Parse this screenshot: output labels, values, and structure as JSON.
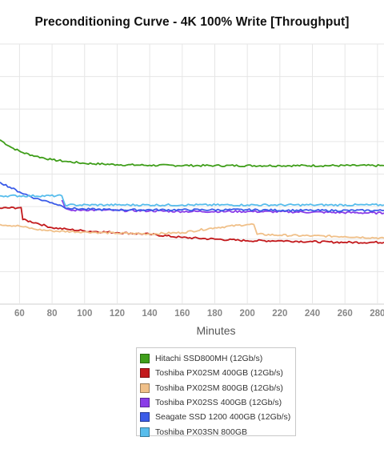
{
  "chart_data": {
    "type": "line",
    "title": "Preconditioning Curve - 4K 100% Write [Throughput]",
    "xlabel": "Minutes",
    "ylabel": "",
    "x_ticks": [
      60,
      80,
      100,
      120,
      140,
      160,
      180,
      200,
      220,
      240,
      260,
      280
    ],
    "xlim": [
      48,
      284
    ],
    "ylim": [
      0,
      8
    ],
    "grid": true,
    "legend_position": "bottom",
    "series": [
      {
        "name": "Hitachi SSD800MH (12Gb/s)",
        "color": "#3f9e1a",
        "points": [
          [
            48,
            5.05
          ],
          [
            55,
            4.82
          ],
          [
            62,
            4.66
          ],
          [
            70,
            4.55
          ],
          [
            80,
            4.44
          ],
          [
            90,
            4.38
          ],
          [
            100,
            4.33
          ],
          [
            120,
            4.29
          ],
          [
            140,
            4.27
          ],
          [
            180,
            4.26
          ],
          [
            220,
            4.26
          ],
          [
            284,
            4.26
          ]
        ]
      },
      {
        "name": "Toshiba PX02SM 400GB (12Gb/s)",
        "color": "#c3191c",
        "points": [
          [
            48,
            2.95
          ],
          [
            61,
            2.97
          ],
          [
            62,
            2.6
          ],
          [
            70,
            2.5
          ],
          [
            80,
            2.35
          ],
          [
            90,
            2.3
          ],
          [
            100,
            2.25
          ],
          [
            120,
            2.2
          ],
          [
            140,
            2.15
          ],
          [
            160,
            2.05
          ],
          [
            180,
            2.0
          ],
          [
            200,
            1.95
          ],
          [
            220,
            1.95
          ],
          [
            240,
            1.92
          ],
          [
            260,
            1.9
          ],
          [
            284,
            1.9
          ]
        ]
      },
      {
        "name": "Toshiba PX02SM 800GB (12Gb/s)",
        "color": "#f0c089",
        "points": [
          [
            48,
            2.45
          ],
          [
            60,
            2.4
          ],
          [
            70,
            2.3
          ],
          [
            80,
            2.25
          ],
          [
            100,
            2.22
          ],
          [
            120,
            2.18
          ],
          [
            140,
            2.16
          ],
          [
            160,
            2.2
          ],
          [
            180,
            2.35
          ],
          [
            200,
            2.45
          ],
          [
            204,
            2.45
          ],
          [
            206,
            2.15
          ],
          [
            220,
            2.12
          ],
          [
            240,
            2.1
          ],
          [
            260,
            2.08
          ],
          [
            284,
            2.03
          ]
        ]
      },
      {
        "name": "Toshiba PX02SS 400GB (12Gb/s)",
        "color": "#8a3ce8",
        "points": [
          [
            86,
            3.2
          ],
          [
            88,
            2.95
          ],
          [
            92,
            2.88
          ],
          [
            100,
            2.9
          ],
          [
            120,
            2.88
          ],
          [
            140,
            2.87
          ],
          [
            160,
            2.85
          ],
          [
            200,
            2.85
          ],
          [
            240,
            2.83
          ],
          [
            284,
            2.8
          ]
        ]
      },
      {
        "name": "Seagate SSD 1200 400GB (12Gb/s)",
        "color": "#3b5ce8",
        "points": [
          [
            48,
            3.75
          ],
          [
            60,
            3.45
          ],
          [
            70,
            3.25
          ],
          [
            80,
            3.12
          ],
          [
            86,
            3.02
          ],
          [
            90,
            2.95
          ],
          [
            100,
            2.92
          ],
          [
            120,
            2.9
          ],
          [
            160,
            2.9
          ],
          [
            200,
            2.9
          ],
          [
            240,
            2.88
          ],
          [
            284,
            2.88
          ]
        ]
      },
      {
        "name": "Toshiba PX03SN 800GB",
        "color": "#57bdec",
        "points": [
          [
            48,
            3.33
          ],
          [
            86,
            3.33
          ],
          [
            88,
            3.05
          ],
          [
            90,
            3.05
          ],
          [
            120,
            3.05
          ],
          [
            160,
            3.05
          ],
          [
            200,
            3.05
          ],
          [
            240,
            3.05
          ],
          [
            284,
            3.05
          ]
        ]
      }
    ]
  }
}
